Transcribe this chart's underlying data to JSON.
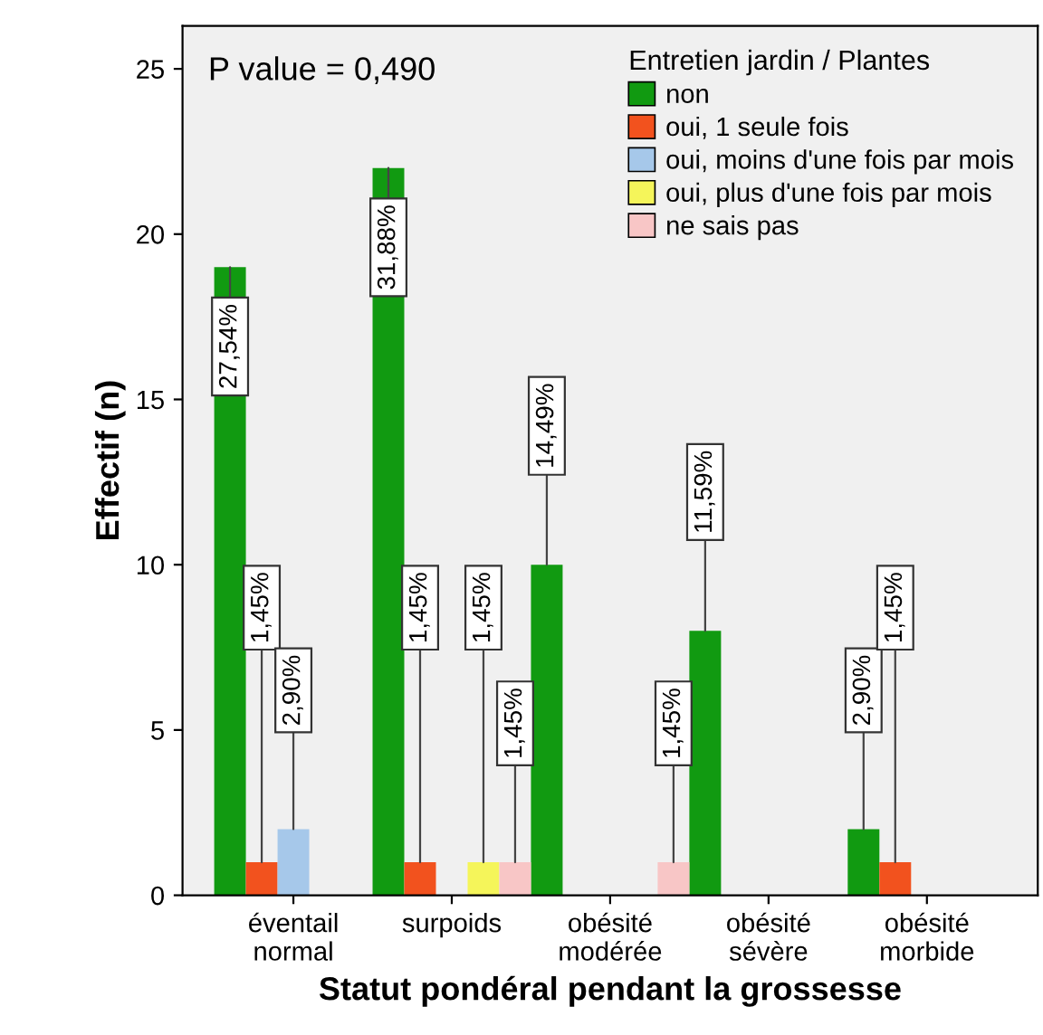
{
  "chart_data": {
    "type": "bar",
    "categories": [
      "éventail\nnormal",
      "surpoids",
      "obésité\nmodérée",
      "obésité\nsévère",
      "obésité\nmorbide"
    ],
    "series": [
      {
        "name": "non",
        "color": "#119a11",
        "values": [
          19,
          22,
          10,
          8,
          2
        ]
      },
      {
        "name": "oui, 1 seule fois",
        "color": "#f2521e",
        "values": [
          1,
          1,
          null,
          null,
          1
        ]
      },
      {
        "name": "oui, moins d'une fois par mois",
        "color": "#a6c8ea",
        "values": [
          2,
          null,
          null,
          null,
          null
        ]
      },
      {
        "name": "oui, plus d'une fois par mois",
        "color": "#f5f55a",
        "values": [
          null,
          1,
          null,
          null,
          null
        ]
      },
      {
        "name": "ne sais pas",
        "color": "#f8c6c6",
        "values": [
          null,
          1,
          1,
          null,
          null
        ]
      }
    ],
    "xlabel": "Statut pondéral pendant la grossesse",
    "ylabel": "Effectif (n)",
    "legend_title": "Entretien jardin / Plantes",
    "legend": "top right",
    "annotations": [
      "P value = 0,490",
      {
        "text": "27,54%",
        "y": 19
      },
      {
        "text": "1,45%",
        "y": 1
      },
      {
        "text": "2,90%",
        "y": 2
      },
      {
        "text": "31,88%",
        "y": 22
      },
      {
        "text": "1,45%",
        "y": 1
      },
      {
        "text": "1,45%",
        "y": 1
      },
      {
        "text": "1,45%",
        "y": 1
      },
      {
        "text": "14,49%",
        "y": 10
      },
      {
        "text": "1,45%",
        "y": 1
      },
      {
        "text": "11,59%",
        "y": 8
      },
      {
        "text": "2,90%",
        "y": 2
      },
      {
        "text": "1,45%",
        "y": 1
      }
    ],
    "ylim": [
      0,
      26.3
    ],
    "yticks": [
      0,
      5,
      10,
      15,
      20,
      25
    ],
    "grid": false
  }
}
